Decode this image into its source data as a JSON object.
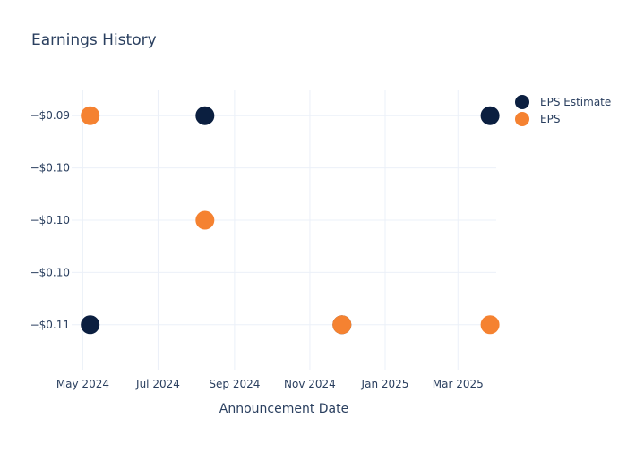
{
  "chart_data": {
    "type": "scatter",
    "title": "Earnings History",
    "xlabel": "Announcement Date",
    "ylabel": "",
    "x_ticks": [
      {
        "label": "May 2024",
        "date": "2024-05-01"
      },
      {
        "label": "Jul 2024",
        "date": "2024-07-01"
      },
      {
        "label": "Sep 2024",
        "date": "2024-09-01"
      },
      {
        "label": "Nov 2024",
        "date": "2024-11-01"
      },
      {
        "label": "Jan 2025",
        "date": "2025-01-01"
      },
      {
        "label": "Mar 2025",
        "date": "2025-03-01"
      }
    ],
    "x_range": [
      "2024-04-22",
      "2025-04-01"
    ],
    "y_ticks": [
      {
        "label": "−$0.09",
        "value": -0.09
      },
      {
        "label": "−$0.10",
        "value": -0.095
      },
      {
        "label": "−$0.10",
        "value": -0.1
      },
      {
        "label": "−$0.10",
        "value": -0.105
      },
      {
        "label": "−$0.11",
        "value": -0.11
      }
    ],
    "y_range": [
      -0.1143,
      -0.0875
    ],
    "grid": true,
    "legend_position": "top-right",
    "series": [
      {
        "name": "EPS Estimate",
        "color": "#0b1f40",
        "points": [
          {
            "x": "2024-05-07",
            "y": -0.11
          },
          {
            "x": "2024-08-08",
            "y": -0.09
          },
          {
            "x": "2024-11-27",
            "y": -0.11
          },
          {
            "x": "2025-03-27",
            "y": -0.09
          }
        ]
      },
      {
        "name": "EPS",
        "color": "#f58231",
        "points": [
          {
            "x": "2024-05-07",
            "y": -0.09
          },
          {
            "x": "2024-08-08",
            "y": -0.1
          },
          {
            "x": "2024-11-27",
            "y": -0.11
          },
          {
            "x": "2025-03-27",
            "y": -0.11
          }
        ]
      }
    ]
  }
}
